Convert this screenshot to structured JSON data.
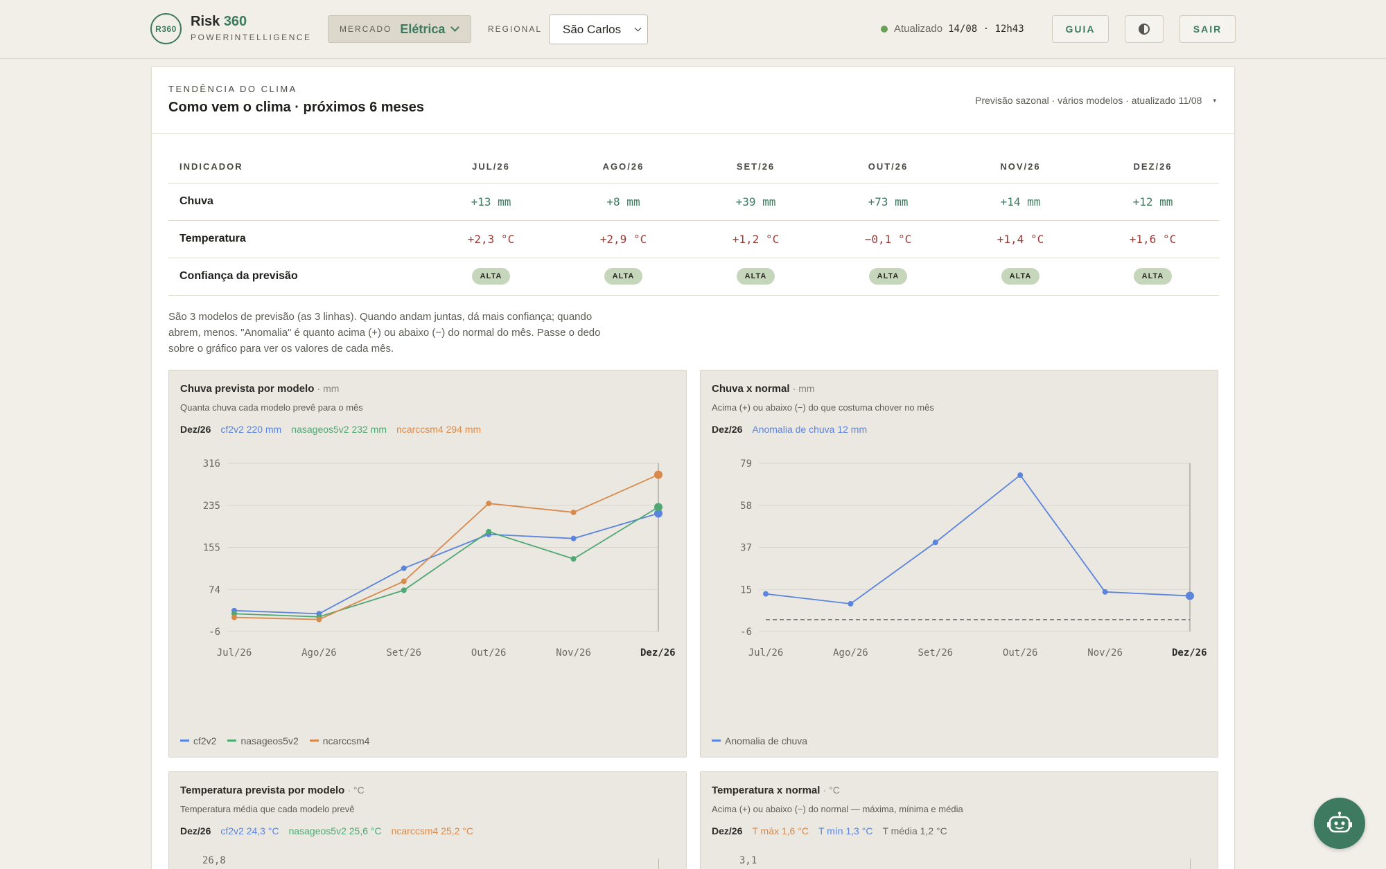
{
  "header": {
    "logo_badge": "R360",
    "brand_name": "Risk",
    "brand_accent": "360",
    "brand_sub": "POWERINTELLIGENCE",
    "market_label": "MERCADO",
    "market_value": "Elétrica",
    "regional_label": "REGIONAL",
    "regional_value": "São Carlos",
    "status_label": "Atualizado",
    "status_date": "14/08 · 12h43",
    "guide_label": "GUIA",
    "logout_label": "SAIR"
  },
  "section": {
    "eyebrow": "TENDÊNCIA DO CLIMA",
    "title": "Como vem o clima · próximos 6 meses",
    "meta": "Previsão sazonal · vários modelos · atualizado 11/08",
    "meta_toggle": "▾"
  },
  "table": {
    "head_indicator": "INDICADOR",
    "months": [
      "JUL/26",
      "AGO/26",
      "SET/26",
      "OUT/26",
      "NOV/26",
      "DEZ/26"
    ],
    "rows": [
      {
        "label": "Chuva",
        "kind": "rain",
        "values": [
          "+13 mm",
          "+8 mm",
          "+39 mm",
          "+73 mm",
          "+14 mm",
          "+12 mm"
        ]
      },
      {
        "label": "Temperatura",
        "kind": "temp",
        "values": [
          "+2,3 °C",
          "+2,9 °C",
          "+1,2 °C",
          "−0,1 °C",
          "+1,4 °C",
          "+1,6 °C"
        ]
      },
      {
        "label": "Confiança da previsão",
        "kind": "conf",
        "values": [
          "ALTA",
          "ALTA",
          "ALTA",
          "ALTA",
          "ALTA",
          "ALTA"
        ]
      }
    ]
  },
  "note": "São 3 modelos de previsão (as 3 linhas). Quando andam juntas, dá mais confiança; quando abrem, menos. \"Anomalia\" é quanto acima (+) ou abaixo (−) do normal do mês. Passe o dedo sobre o gráfico para ver os valores de cada mês.",
  "panels": {
    "rain_models": {
      "title": "Chuva prevista por modelo",
      "unit": "· mm",
      "subtitle": "Quanta chuva cada modelo prevê para o mês",
      "readout_month": "Dez/26",
      "readouts": [
        "cf2v2 220 mm",
        "nasageos5v2 232 mm",
        "ncarccsm4 294 mm"
      ],
      "legend": [
        "cf2v2",
        "nasageos5v2",
        "ncarccsm4"
      ]
    },
    "rain_anomaly": {
      "title": "Chuva x normal",
      "unit": "· mm",
      "subtitle": "Acima (+) ou abaixo (−) do que costuma chover no mês",
      "readout_month": "Dez/26",
      "readouts": [
        "Anomalia de chuva 12 mm"
      ],
      "legend": [
        "Anomalia de chuva"
      ]
    },
    "temp_models": {
      "title": "Temperatura prevista por modelo",
      "unit": "· °C",
      "subtitle": "Temperatura média que cada modelo prevê",
      "readout_month": "Dez/26",
      "readouts": [
        "cf2v2 24,3 °C",
        "nasageos5v2 25,6 °C",
        "ncarccsm4 25,2 °C"
      ],
      "first_tick": "26,8"
    },
    "temp_anomaly": {
      "title": "Temperatura x normal",
      "unit": "· °C",
      "subtitle": "Acima (+) ou abaixo (−) do normal — máxima, mínima e média",
      "readout_month": "Dez/26",
      "readouts": [
        "T máx 1,6 °C",
        "T mín 1,3 °C",
        "T média 1,2 °C"
      ],
      "first_tick": "3,1"
    }
  },
  "colors": {
    "blue": "#5b84dc",
    "green": "#4fa774",
    "orange": "#d78a4c",
    "accent": "#3d7a5f"
  },
  "chart_data": [
    {
      "type": "line",
      "title": "Chuva prevista por modelo",
      "ylabel": "mm",
      "x": [
        "Jul/26",
        "Ago/26",
        "Set/26",
        "Out/26",
        "Nov/26",
        "Dez/26"
      ],
      "yticks": [
        "316",
        "235",
        "155",
        "74",
        "-6"
      ],
      "ylim": [
        -6,
        316
      ],
      "series": [
        {
          "name": "cf2v2",
          "color": "#5b84dc",
          "values": [
            34,
            28,
            115,
            180,
            172,
            220
          ]
        },
        {
          "name": "nasageos5v2",
          "color": "#4fa774",
          "values": [
            28,
            22,
            73,
            185,
            133,
            232
          ]
        },
        {
          "name": "ncarccsm4",
          "color": "#d78a4c",
          "values": [
            21,
            17,
            90,
            239,
            222,
            294
          ]
        }
      ],
      "legend": "bottom-left"
    },
    {
      "type": "line",
      "title": "Chuva x normal",
      "ylabel": "mm",
      "x": [
        "Jul/26",
        "Ago/26",
        "Set/26",
        "Out/26",
        "Nov/26",
        "Dez/26"
      ],
      "yticks": [
        "79",
        "58",
        "37",
        "15",
        "-6"
      ],
      "ylim": [
        -6,
        79
      ],
      "series": [
        {
          "name": "Anomalia de chuva",
          "color": "#5b84dc",
          "values": [
            13,
            8,
            39,
            73,
            14,
            12
          ]
        }
      ],
      "baseline": 0,
      "legend": "bottom-left"
    }
  ]
}
